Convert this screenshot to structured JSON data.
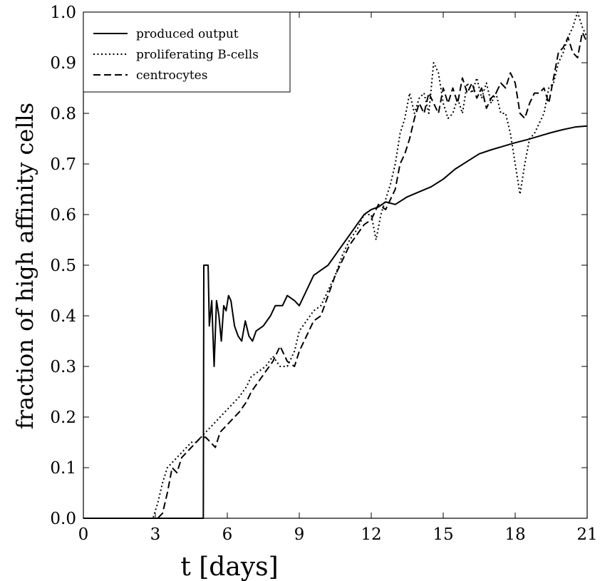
{
  "chart_data": {
    "type": "line",
    "title": "",
    "xlabel": "t [days]",
    "ylabel": "fraction of high affinity cells",
    "xlim": [
      0,
      21
    ],
    "ylim": [
      0,
      1
    ],
    "x_ticks": [
      0,
      3,
      6,
      9,
      12,
      15,
      18,
      21
    ],
    "y_ticks": [
      0.0,
      0.1,
      0.2,
      0.3,
      0.4,
      0.5,
      0.6,
      0.7,
      0.8,
      0.9,
      1.0
    ],
    "y_tick_labels": [
      "0.0",
      "0.1",
      "0.2",
      "0.3",
      "0.4",
      "0.5",
      "0.6",
      "0.7",
      "0.8",
      "0.9",
      "1.0"
    ],
    "grid": false,
    "legend_position": "top-left",
    "series": [
      {
        "name": "produced output",
        "style": "solid",
        "color": "#000000",
        "points": [
          [
            0,
            0
          ],
          [
            5.0,
            0
          ],
          [
            5.02,
            0.5
          ],
          [
            5.2,
            0.5
          ],
          [
            5.25,
            0.38
          ],
          [
            5.35,
            0.43
          ],
          [
            5.45,
            0.3
          ],
          [
            5.55,
            0.43
          ],
          [
            5.65,
            0.4
          ],
          [
            5.75,
            0.35
          ],
          [
            5.85,
            0.42
          ],
          [
            5.95,
            0.41
          ],
          [
            6.05,
            0.44
          ],
          [
            6.15,
            0.43
          ],
          [
            6.3,
            0.38
          ],
          [
            6.45,
            0.36
          ],
          [
            6.6,
            0.35
          ],
          [
            6.75,
            0.39
          ],
          [
            6.9,
            0.36
          ],
          [
            7.05,
            0.35
          ],
          [
            7.2,
            0.37
          ],
          [
            7.5,
            0.38
          ],
          [
            7.8,
            0.4
          ],
          [
            8.0,
            0.42
          ],
          [
            8.3,
            0.42
          ],
          [
            8.5,
            0.44
          ],
          [
            8.8,
            0.43
          ],
          [
            9.0,
            0.42
          ],
          [
            9.3,
            0.45
          ],
          [
            9.6,
            0.48
          ],
          [
            9.9,
            0.49
          ],
          [
            10.2,
            0.5
          ],
          [
            10.5,
            0.52
          ],
          [
            10.8,
            0.54
          ],
          [
            11.1,
            0.56
          ],
          [
            11.4,
            0.58
          ],
          [
            11.7,
            0.6
          ],
          [
            12.0,
            0.61
          ],
          [
            12.3,
            0.615
          ],
          [
            12.6,
            0.625
          ],
          [
            13.0,
            0.62
          ],
          [
            13.5,
            0.635
          ],
          [
            14.0,
            0.645
          ],
          [
            14.5,
            0.655
          ],
          [
            15.0,
            0.67
          ],
          [
            15.5,
            0.69
          ],
          [
            16.0,
            0.705
          ],
          [
            16.5,
            0.72
          ],
          [
            17.0,
            0.728
          ],
          [
            17.5,
            0.735
          ],
          [
            18.0,
            0.742
          ],
          [
            18.5,
            0.748
          ],
          [
            19.0,
            0.755
          ],
          [
            19.5,
            0.762
          ],
          [
            20.0,
            0.768
          ],
          [
            20.5,
            0.773
          ],
          [
            21.0,
            0.775
          ]
        ]
      },
      {
        "name": "proliferating B-cells",
        "style": "dotted",
        "color": "#000000",
        "points": [
          [
            0,
            0
          ],
          [
            2.9,
            0
          ],
          [
            3.1,
            0.03
          ],
          [
            3.3,
            0.07
          ],
          [
            3.5,
            0.1
          ],
          [
            3.7,
            0.11
          ],
          [
            3.9,
            0.12
          ],
          [
            4.1,
            0.13
          ],
          [
            4.3,
            0.14
          ],
          [
            4.5,
            0.15
          ],
          [
            4.7,
            0.15
          ],
          [
            4.9,
            0.16
          ],
          [
            5.1,
            0.17
          ],
          [
            5.3,
            0.18
          ],
          [
            5.5,
            0.19
          ],
          [
            5.7,
            0.2
          ],
          [
            5.9,
            0.21
          ],
          [
            6.1,
            0.22
          ],
          [
            6.3,
            0.23
          ],
          [
            6.5,
            0.24
          ],
          [
            6.8,
            0.26
          ],
          [
            7.0,
            0.28
          ],
          [
            7.3,
            0.29
          ],
          [
            7.6,
            0.3
          ],
          [
            7.9,
            0.32
          ],
          [
            8.2,
            0.3
          ],
          [
            8.5,
            0.3
          ],
          [
            8.8,
            0.33
          ],
          [
            9.0,
            0.37
          ],
          [
            9.3,
            0.39
          ],
          [
            9.6,
            0.41
          ],
          [
            9.9,
            0.42
          ],
          [
            10.2,
            0.45
          ],
          [
            10.5,
            0.48
          ],
          [
            10.8,
            0.52
          ],
          [
            11.1,
            0.55
          ],
          [
            11.4,
            0.57
          ],
          [
            11.7,
            0.6
          ],
          [
            12.0,
            0.6
          ],
          [
            12.2,
            0.55
          ],
          [
            12.4,
            0.6
          ],
          [
            12.6,
            0.63
          ],
          [
            12.8,
            0.66
          ],
          [
            13.0,
            0.7
          ],
          [
            13.2,
            0.76
          ],
          [
            13.4,
            0.79
          ],
          [
            13.6,
            0.84
          ],
          [
            13.8,
            0.8
          ],
          [
            14.0,
            0.83
          ],
          [
            14.2,
            0.84
          ],
          [
            14.4,
            0.8
          ],
          [
            14.6,
            0.9
          ],
          [
            14.8,
            0.88
          ],
          [
            15.0,
            0.82
          ],
          [
            15.2,
            0.79
          ],
          [
            15.4,
            0.8
          ],
          [
            15.6,
            0.83
          ],
          [
            15.8,
            0.8
          ],
          [
            16.0,
            0.86
          ],
          [
            16.2,
            0.84
          ],
          [
            16.4,
            0.87
          ],
          [
            16.6,
            0.83
          ],
          [
            16.8,
            0.86
          ],
          [
            17.0,
            0.82
          ],
          [
            17.2,
            0.84
          ],
          [
            17.4,
            0.8
          ],
          [
            17.6,
            0.8
          ],
          [
            17.8,
            0.76
          ],
          [
            18.0,
            0.7
          ],
          [
            18.2,
            0.64
          ],
          [
            18.4,
            0.7
          ],
          [
            18.6,
            0.75
          ],
          [
            18.8,
            0.76
          ],
          [
            19.0,
            0.78
          ],
          [
            19.2,
            0.8
          ],
          [
            19.4,
            0.85
          ],
          [
            19.6,
            0.86
          ],
          [
            19.8,
            0.9
          ],
          [
            20.0,
            0.92
          ],
          [
            20.2,
            0.95
          ],
          [
            20.4,
            0.97
          ],
          [
            20.6,
            1.0
          ],
          [
            20.8,
            0.97
          ],
          [
            21.0,
            0.95
          ]
        ]
      },
      {
        "name": "centrocytes",
        "style": "dashed",
        "color": "#000000",
        "points": [
          [
            0,
            0
          ],
          [
            3.1,
            0
          ],
          [
            3.3,
            0.01
          ],
          [
            3.5,
            0.05
          ],
          [
            3.7,
            0.1
          ],
          [
            3.9,
            0.09
          ],
          [
            4.1,
            0.12
          ],
          [
            4.3,
            0.13
          ],
          [
            4.5,
            0.14
          ],
          [
            4.7,
            0.15
          ],
          [
            4.9,
            0.16
          ],
          [
            5.1,
            0.16
          ],
          [
            5.3,
            0.15
          ],
          [
            5.5,
            0.14
          ],
          [
            5.7,
            0.17
          ],
          [
            5.9,
            0.18
          ],
          [
            6.1,
            0.19
          ],
          [
            6.3,
            0.2
          ],
          [
            6.5,
            0.21
          ],
          [
            6.8,
            0.23
          ],
          [
            7.0,
            0.25
          ],
          [
            7.3,
            0.27
          ],
          [
            7.6,
            0.29
          ],
          [
            7.9,
            0.31
          ],
          [
            8.2,
            0.34
          ],
          [
            8.5,
            0.31
          ],
          [
            8.8,
            0.3
          ],
          [
            9.0,
            0.33
          ],
          [
            9.3,
            0.36
          ],
          [
            9.6,
            0.39
          ],
          [
            9.9,
            0.4
          ],
          [
            10.2,
            0.44
          ],
          [
            10.5,
            0.48
          ],
          [
            10.8,
            0.51
          ],
          [
            11.1,
            0.54
          ],
          [
            11.4,
            0.56
          ],
          [
            11.7,
            0.58
          ],
          [
            12.0,
            0.59
          ],
          [
            12.3,
            0.62
          ],
          [
            12.6,
            0.61
          ],
          [
            12.8,
            0.63
          ],
          [
            13.0,
            0.65
          ],
          [
            13.2,
            0.7
          ],
          [
            13.4,
            0.72
          ],
          [
            13.6,
            0.75
          ],
          [
            13.8,
            0.79
          ],
          [
            14.0,
            0.82
          ],
          [
            14.2,
            0.8
          ],
          [
            14.4,
            0.84
          ],
          [
            14.6,
            0.82
          ],
          [
            14.8,
            0.8
          ],
          [
            15.0,
            0.85
          ],
          [
            15.2,
            0.82
          ],
          [
            15.4,
            0.85
          ],
          [
            15.6,
            0.82
          ],
          [
            15.8,
            0.87
          ],
          [
            16.0,
            0.84
          ],
          [
            16.2,
            0.86
          ],
          [
            16.4,
            0.83
          ],
          [
            16.6,
            0.85
          ],
          [
            16.8,
            0.81
          ],
          [
            17.0,
            0.83
          ],
          [
            17.2,
            0.84
          ],
          [
            17.4,
            0.86
          ],
          [
            17.6,
            0.85
          ],
          [
            17.8,
            0.88
          ],
          [
            18.0,
            0.86
          ],
          [
            18.2,
            0.8
          ],
          [
            18.4,
            0.79
          ],
          [
            18.6,
            0.82
          ],
          [
            18.8,
            0.84
          ],
          [
            19.0,
            0.84
          ],
          [
            19.2,
            0.85
          ],
          [
            19.4,
            0.82
          ],
          [
            19.6,
            0.87
          ],
          [
            19.8,
            0.92
          ],
          [
            20.0,
            0.93
          ],
          [
            20.2,
            0.95
          ],
          [
            20.4,
            0.92
          ],
          [
            20.6,
            0.91
          ],
          [
            20.8,
            0.96
          ],
          [
            21.0,
            0.94
          ]
        ]
      }
    ]
  }
}
